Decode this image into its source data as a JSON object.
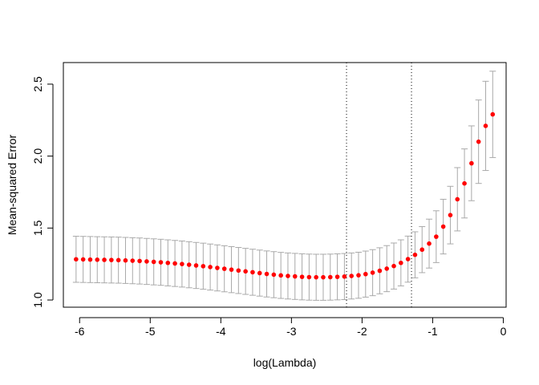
{
  "chart_data": {
    "type": "scatter",
    "title": "",
    "xlabel": "log(Lambda)",
    "ylabel": "Mean-squared Error",
    "xlim": [
      -6.23,
      0.04
    ],
    "ylim": [
      0.95,
      2.65
    ],
    "xticks": [
      -6,
      -5,
      -4,
      -3,
      -2,
      -1,
      0
    ],
    "xtick_labels": [
      "-6",
      "-5",
      "-4",
      "-3",
      "-2",
      "-1",
      "0"
    ],
    "yticks": [
      1.0,
      1.5,
      2.0,
      2.5
    ],
    "ytick_labels": [
      "1.0",
      "1.5",
      "2.0",
      "2.5"
    ],
    "grid": false,
    "legend": "none",
    "reference_lines_x": [
      -2.22,
      -1.3
    ],
    "point_color": "#ff0000",
    "errorbar_color": "#a9a9a9",
    "series": [
      {
        "x": [
          -6.05,
          -5.95,
          -5.85,
          -5.75,
          -5.65,
          -5.55,
          -5.45,
          -5.35,
          -5.25,
          -5.15,
          -5.05,
          -4.95,
          -4.85,
          -4.75,
          -4.65,
          -4.55,
          -4.45,
          -4.35,
          -4.25,
          -4.15,
          -4.05,
          -3.95,
          -3.85,
          -3.75,
          -3.65,
          -3.55,
          -3.45,
          -3.35,
          -3.25,
          -3.15,
          -3.05,
          -2.95,
          -2.85,
          -2.75,
          -2.65,
          -2.55,
          -2.45,
          -2.35,
          -2.25,
          -2.15,
          -2.05,
          -1.95,
          -1.85,
          -1.75,
          -1.65,
          -1.55,
          -1.45,
          -1.35,
          -1.25,
          -1.15,
          -1.05,
          -0.95,
          -0.85,
          -0.75,
          -0.65,
          -0.55,
          -0.45,
          -0.35,
          -0.25,
          -0.15
        ],
        "y": [
          1.283,
          1.282,
          1.281,
          1.28,
          1.279,
          1.278,
          1.277,
          1.275,
          1.273,
          1.271,
          1.268,
          1.265,
          1.262,
          1.258,
          1.254,
          1.25,
          1.245,
          1.24,
          1.235,
          1.229,
          1.223,
          1.217,
          1.211,
          1.205,
          1.199,
          1.193,
          1.187,
          1.181,
          1.176,
          1.171,
          1.167,
          1.164,
          1.161,
          1.159,
          1.158,
          1.158,
          1.159,
          1.161,
          1.163,
          1.167,
          1.172,
          1.18,
          1.19,
          1.203,
          1.218,
          1.236,
          1.258,
          1.284,
          1.314,
          1.35,
          1.392,
          1.44,
          1.51,
          1.59,
          1.7,
          1.81,
          1.95,
          2.1,
          2.21,
          2.29
        ],
        "err": [
          0.16,
          0.16,
          0.16,
          0.16,
          0.16,
          0.16,
          0.16,
          0.16,
          0.16,
          0.16,
          0.16,
          0.16,
          0.16,
          0.16,
          0.16,
          0.16,
          0.16,
          0.16,
          0.16,
          0.16,
          0.16,
          0.16,
          0.16,
          0.16,
          0.16,
          0.16,
          0.16,
          0.16,
          0.16,
          0.16,
          0.16,
          0.16,
          0.16,
          0.16,
          0.16,
          0.16,
          0.16,
          0.16,
          0.16,
          0.16,
          0.16,
          0.16,
          0.16,
          0.16,
          0.16,
          0.16,
          0.16,
          0.16,
          0.16,
          0.16,
          0.17,
          0.18,
          0.19,
          0.2,
          0.22,
          0.24,
          0.26,
          0.29,
          0.31,
          0.3
        ]
      }
    ]
  }
}
